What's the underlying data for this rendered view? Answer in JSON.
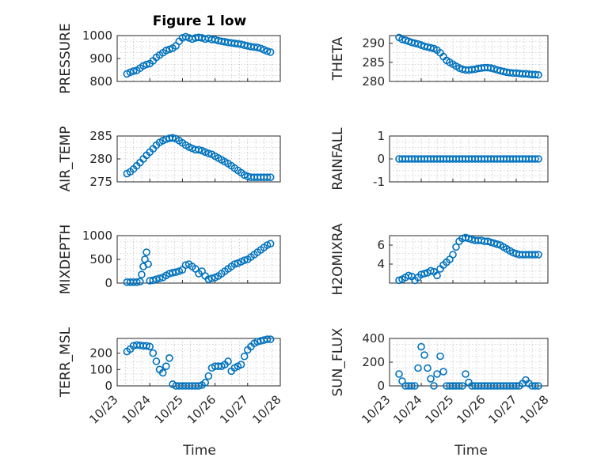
{
  "figure": {
    "title": "Figure 1 low"
  },
  "colors": {
    "marker": "#0072bd",
    "axes": "#262626",
    "grid": "#b0b0b0"
  },
  "chart_data": [
    {
      "type": "scatter",
      "id": "pressure",
      "ylabel": "PRESSURE",
      "ylim": [
        800,
        1000
      ],
      "yticks": [
        800,
        900,
        1000
      ],
      "xlim": [
        0,
        5
      ],
      "x": [
        0.3,
        0.4,
        0.5,
        0.6,
        0.7,
        0.8,
        0.9,
        1.0,
        1.1,
        1.2,
        1.3,
        1.4,
        1.5,
        1.6,
        1.7,
        1.8,
        1.9,
        2.0,
        2.1,
        2.2,
        2.3,
        2.4,
        2.5,
        2.6,
        2.7,
        2.8,
        2.9,
        3.0,
        3.1,
        3.2,
        3.3,
        3.4,
        3.5,
        3.6,
        3.7,
        3.8,
        3.9,
        4.0,
        4.1,
        4.2,
        4.3,
        4.4,
        4.5,
        4.6,
        4.7
      ],
      "y": [
        833,
        840,
        845,
        848,
        858,
        868,
        874,
        878,
        890,
        905,
        915,
        925,
        935,
        940,
        945,
        955,
        975,
        990,
        995,
        990,
        985,
        990,
        992,
        990,
        985,
        988,
        983,
        982,
        978,
        975,
        973,
        970,
        968,
        966,
        964,
        962,
        958,
        955,
        952,
        950,
        948,
        944,
        938,
        932,
        928
      ]
    },
    {
      "type": "scatter",
      "id": "theta",
      "ylabel": "THETA",
      "ylim": [
        280,
        292
      ],
      "yticks": [
        280,
        285,
        290
      ],
      "xlim": [
        0,
        5
      ],
      "x": [
        0.3,
        0.4,
        0.5,
        0.6,
        0.7,
        0.8,
        0.9,
        1.0,
        1.1,
        1.2,
        1.3,
        1.4,
        1.5,
        1.6,
        1.7,
        1.8,
        1.9,
        2.0,
        2.1,
        2.2,
        2.3,
        2.4,
        2.5,
        2.6,
        2.7,
        2.8,
        2.9,
        3.0,
        3.1,
        3.2,
        3.3,
        3.4,
        3.5,
        3.6,
        3.7,
        3.8,
        3.9,
        4.0,
        4.1,
        4.2,
        4.3,
        4.4,
        4.5,
        4.6,
        4.7
      ],
      "y": [
        291.5,
        291,
        290.8,
        290.5,
        290.2,
        290,
        289.8,
        289.5,
        289.2,
        289,
        288.8,
        288.6,
        288.2,
        287.5,
        286.5,
        285.5,
        285,
        284.5,
        284,
        283.5,
        283.2,
        283,
        283,
        283.1,
        283.2,
        283.4,
        283.5,
        283.6,
        283.6,
        283.5,
        283.3,
        283,
        282.8,
        282.6,
        282.4,
        282.3,
        282.2,
        282.2,
        282.1,
        282,
        282,
        281.9,
        281.8,
        281.8,
        281.7
      ]
    },
    {
      "type": "scatter",
      "id": "air_temp",
      "ylabel": "AIR_TEMP",
      "ylim": [
        275,
        285
      ],
      "yticks": [
        275,
        280,
        285
      ],
      "xlim": [
        0,
        5
      ],
      "x": [
        0.3,
        0.4,
        0.5,
        0.6,
        0.7,
        0.8,
        0.9,
        1.0,
        1.1,
        1.2,
        1.3,
        1.4,
        1.5,
        1.6,
        1.7,
        1.8,
        1.9,
        2.0,
        2.1,
        2.2,
        2.3,
        2.4,
        2.5,
        2.6,
        2.7,
        2.8,
        2.9,
        3.0,
        3.1,
        3.2,
        3.3,
        3.4,
        3.5,
        3.6,
        3.7,
        3.8,
        3.9,
        4.0,
        4.1,
        4.2,
        4.3,
        4.4,
        4.5,
        4.6,
        4.7
      ],
      "y": [
        276.8,
        277.2,
        277.8,
        278.5,
        279.2,
        280,
        280.8,
        281.5,
        282.2,
        283,
        283.6,
        284,
        284.3,
        284.5,
        284.6,
        284.4,
        284,
        283.5,
        283,
        282.6,
        282.3,
        282,
        282,
        281.8,
        281.5,
        281.2,
        281,
        280.6,
        280.2,
        279.8,
        279.4,
        279,
        278.5,
        278,
        277.5,
        277,
        276.5,
        276.2,
        276.0,
        276.0,
        276.0,
        276.0,
        276.0,
        276.0,
        276.0
      ]
    },
    {
      "type": "scatter",
      "id": "rainfall",
      "ylabel": "RAINFALL",
      "ylim": [
        -1,
        1
      ],
      "yticks": [
        -1,
        0,
        1
      ],
      "xlim": [
        0,
        5
      ],
      "x": [
        0.3,
        0.4,
        0.5,
        0.6,
        0.7,
        0.8,
        0.9,
        1.0,
        1.1,
        1.2,
        1.3,
        1.4,
        1.5,
        1.6,
        1.7,
        1.8,
        1.9,
        2.0,
        2.1,
        2.2,
        2.3,
        2.4,
        2.5,
        2.6,
        2.7,
        2.8,
        2.9,
        3.0,
        3.1,
        3.2,
        3.3,
        3.4,
        3.5,
        3.6,
        3.7,
        3.8,
        3.9,
        4.0,
        4.1,
        4.2,
        4.3,
        4.4,
        4.5,
        4.6,
        4.7
      ],
      "y": [
        0,
        0,
        0,
        0,
        0,
        0,
        0,
        0,
        0,
        0,
        0,
        0,
        0,
        0,
        0,
        0,
        0,
        0,
        0,
        0,
        0,
        0,
        0,
        0,
        0,
        0,
        0,
        0,
        0,
        0,
        0,
        0,
        0,
        0,
        0,
        0,
        0,
        0,
        0,
        0,
        0,
        0,
        0,
        0,
        0
      ]
    },
    {
      "type": "scatter",
      "id": "mixdepth",
      "ylabel": "MIXDEPTH",
      "ylim": [
        0,
        1000
      ],
      "yticks": [
        0,
        500,
        1000
      ],
      "xlim": [
        0,
        5
      ],
      "x": [
        0.3,
        0.4,
        0.5,
        0.6,
        0.7,
        0.75,
        0.8,
        0.85,
        0.9,
        0.95,
        1.0,
        1.1,
        1.2,
        1.3,
        1.4,
        1.5,
        1.6,
        1.7,
        1.8,
        1.9,
        2.0,
        2.1,
        2.2,
        2.3,
        2.4,
        2.5,
        2.6,
        2.7,
        2.8,
        2.9,
        3.0,
        3.1,
        3.2,
        3.3,
        3.4,
        3.5,
        3.6,
        3.7,
        3.8,
        3.9,
        4.0,
        4.1,
        4.2,
        4.3,
        4.4,
        4.5,
        4.6,
        4.7
      ],
      "y": [
        20,
        20,
        20,
        20,
        30,
        180,
        350,
        500,
        650,
        400,
        50,
        60,
        80,
        100,
        120,
        160,
        200,
        220,
        230,
        250,
        280,
        380,
        400,
        350,
        300,
        200,
        250,
        150,
        80,
        100,
        120,
        150,
        200,
        250,
        300,
        350,
        400,
        420,
        450,
        480,
        500,
        550,
        600,
        650,
        700,
        750,
        800,
        830
      ]
    },
    {
      "type": "scatter",
      "id": "h2omixra",
      "ylabel": "H2OMIXRA",
      "ylim": [
        2,
        7
      ],
      "yticks": [
        4,
        6
      ],
      "xlim": [
        0,
        5
      ],
      "x": [
        0.3,
        0.4,
        0.5,
        0.6,
        0.7,
        0.8,
        0.9,
        1.0,
        1.1,
        1.2,
        1.3,
        1.4,
        1.5,
        1.6,
        1.7,
        1.8,
        1.9,
        2.0,
        2.1,
        2.2,
        2.3,
        2.4,
        2.5,
        2.6,
        2.7,
        2.8,
        2.9,
        3.0,
        3.1,
        3.2,
        3.3,
        3.4,
        3.5,
        3.6,
        3.7,
        3.8,
        3.9,
        4.0,
        4.1,
        4.2,
        4.3,
        4.4,
        4.5,
        4.6,
        4.7
      ],
      "y": [
        2.3,
        2.4,
        2.6,
        2.8,
        2.7,
        2.3,
        2.6,
        2.9,
        3.0,
        3.1,
        3.3,
        3.2,
        2.8,
        3.5,
        3.9,
        4.2,
        4.5,
        5.0,
        5.8,
        6.4,
        6.7,
        6.8,
        6.7,
        6.6,
        6.5,
        6.5,
        6.5,
        6.4,
        6.4,
        6.3,
        6.2,
        6.1,
        6.0,
        5.8,
        5.6,
        5.4,
        5.2,
        5.1,
        5.0,
        5.0,
        5.0,
        5.0,
        5.0,
        5.0,
        5.0
      ]
    },
    {
      "type": "scatter",
      "id": "terr_msl",
      "ylabel": "TERR_MSL",
      "ylim": [
        0,
        290
      ],
      "yticks": [
        0,
        100,
        200
      ],
      "xlim": [
        0,
        5
      ],
      "x": [
        0.3,
        0.4,
        0.5,
        0.6,
        0.7,
        0.8,
        0.9,
        1.0,
        1.1,
        1.2,
        1.3,
        1.4,
        1.5,
        1.6,
        1.7,
        1.8,
        1.9,
        2.0,
        2.1,
        2.2,
        2.3,
        2.4,
        2.5,
        2.6,
        2.7,
        2.8,
        2.9,
        3.0,
        3.1,
        3.2,
        3.3,
        3.4,
        3.5,
        3.6,
        3.7,
        3.8,
        3.9,
        4.0,
        4.1,
        4.2,
        4.3,
        4.4,
        4.5,
        4.6,
        4.7
      ],
      "y": [
        210,
        225,
        245,
        250,
        248,
        245,
        245,
        240,
        200,
        150,
        100,
        80,
        120,
        170,
        10,
        0,
        0,
        0,
        0,
        0,
        0,
        0,
        0,
        5,
        20,
        60,
        110,
        120,
        120,
        120,
        130,
        150,
        90,
        110,
        120,
        130,
        180,
        220,
        240,
        260,
        270,
        275,
        280,
        285,
        285
      ]
    },
    {
      "type": "scatter",
      "id": "sun_flux",
      "ylabel": "SUN_FLUX",
      "ylim": [
        0,
        400
      ],
      "yticks": [
        0,
        200,
        400
      ],
      "xlim": [
        0,
        5
      ],
      "x": [
        0.3,
        0.4,
        0.5,
        0.6,
        0.7,
        0.8,
        0.9,
        1.0,
        1.1,
        1.2,
        1.3,
        1.4,
        1.5,
        1.6,
        1.7,
        1.8,
        1.9,
        2.0,
        2.1,
        2.2,
        2.3,
        2.4,
        2.5,
        2.6,
        2.7,
        2.8,
        2.9,
        3.0,
        3.1,
        3.2,
        3.3,
        3.4,
        3.5,
        3.6,
        3.7,
        3.8,
        3.9,
        4.0,
        4.1,
        4.2,
        4.3,
        4.4,
        4.5,
        4.6,
        4.7
      ],
      "y": [
        100,
        40,
        0,
        0,
        0,
        0,
        150,
        330,
        260,
        150,
        60,
        0,
        100,
        250,
        120,
        0,
        0,
        0,
        0,
        0,
        0,
        100,
        30,
        0,
        0,
        0,
        0,
        0,
        0,
        0,
        0,
        0,
        0,
        0,
        0,
        0,
        0,
        0,
        0,
        20,
        50,
        20,
        0,
        0,
        0
      ]
    }
  ],
  "xaxis": {
    "label": "Time",
    "ticks": [
      "10/23",
      "10/24",
      "10/25",
      "10/26",
      "10/27",
      "10/28"
    ]
  }
}
